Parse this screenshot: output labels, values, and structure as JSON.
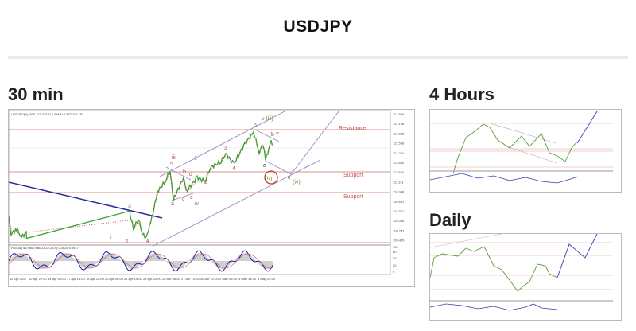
{
  "page": {
    "title": "USDJPY"
  },
  "sections": {
    "m30": "30 min",
    "h4": "4 Hours",
    "daily": "Daily"
  },
  "main_chart": {
    "header": "USDJPY(B),M30 112.475 112.498 112.467 112.487",
    "indicator_header": "RSI(14) 45.9800  MACD(12,26,9) 0.0024 0.0617",
    "price_ticks": [
      "113.506",
      "113.196",
      "112.885",
      "112.566",
      "112.251",
      "111.936",
      "111.626",
      "111.311",
      "110.998",
      "110.681",
      "110.371",
      "110.056",
      "109.741",
      "109.426"
    ],
    "indicator_ticks": [
      "100",
      "80",
      "50",
      "20",
      "0"
    ],
    "date_ticks": [
      "11 Apr 2017",
      "12 Apr 22:00",
      "14 Apr 06:00",
      "17 Apr 14:00",
      "18 Apr 22:00",
      "20 Apr 06:00",
      "21 Apr 14:00",
      "24 Apr 22:00",
      "26 Apr 06:00",
      "27 Apr 14:00",
      "30 Apr 22:00",
      "2 May 06:00",
      "3 May 14:00",
      "4 May 22:00"
    ],
    "levels": {
      "resistance": "Resistance",
      "support1": "Support",
      "support2": "Support"
    },
    "waves": {
      "v_iii": "v (iii)",
      "w5": "5",
      "b_q": "b ?",
      "w3": "3",
      "a": "a",
      "w4": "4",
      "w1": "1",
      "iii": "iii",
      "w5b": "5",
      "b": "b",
      "d": "d",
      "iv_red": "(iv)",
      "c": "c",
      "iv_green": "(iv)",
      "w2": "2",
      "a2": "a",
      "c2": "c",
      "e": "e",
      "iv": "iv",
      "w3b": "3",
      "w4b": "4",
      "i": "i",
      "w1b": "1"
    },
    "colors": {
      "up": "#3aa336",
      "down": "#c0392b",
      "level": "#d46a6a",
      "channel": "#8c8cc8",
      "trend": "#2a2aa0",
      "osc": "#1a1aa8"
    }
  }
}
